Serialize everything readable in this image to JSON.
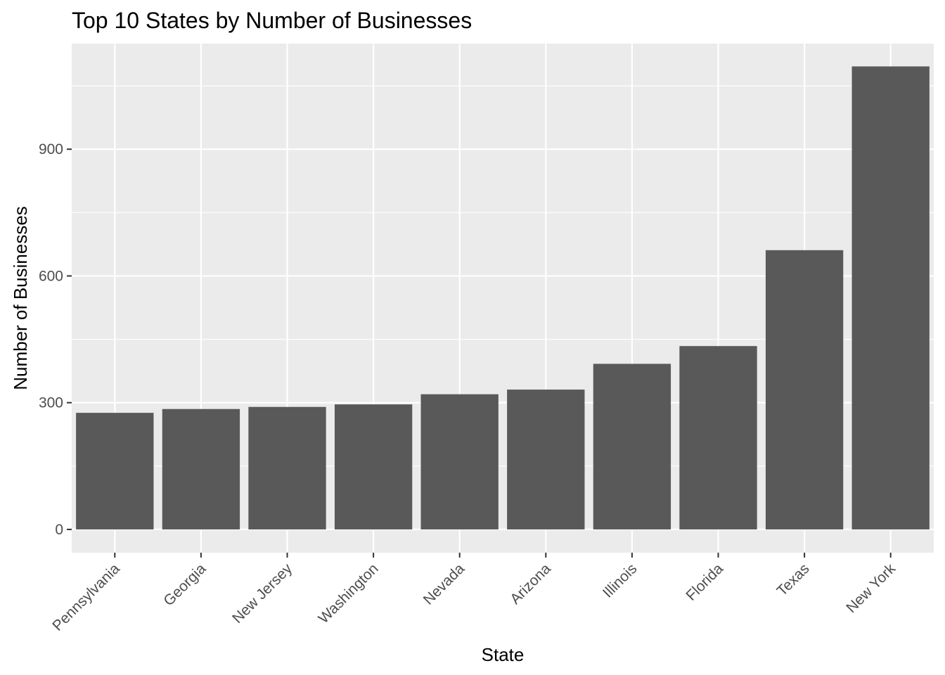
{
  "chart_data": {
    "type": "bar",
    "title": "Top 10 States by Number of Businesses",
    "xlabel": "State",
    "ylabel": "Number of Businesses",
    "categories": [
      "Pennsylvania",
      "Georgia",
      "New Jersey",
      "Washington",
      "Nevada",
      "Arizona",
      "Illinois",
      "Florida",
      "Texas",
      "New York"
    ],
    "values": [
      276,
      285,
      290,
      296,
      320,
      331,
      392,
      434,
      661,
      1096
    ],
    "ylim": [
      -55,
      1150
    ],
    "yticks": [
      0,
      300,
      600,
      900
    ],
    "grid": true,
    "legend": "none",
    "colors": {
      "bar": "#595959",
      "panel": "#ebebeb",
      "grid_major": "#ffffff",
      "tick_text": "#4d4d4d",
      "tick_mark": "#333333"
    }
  }
}
